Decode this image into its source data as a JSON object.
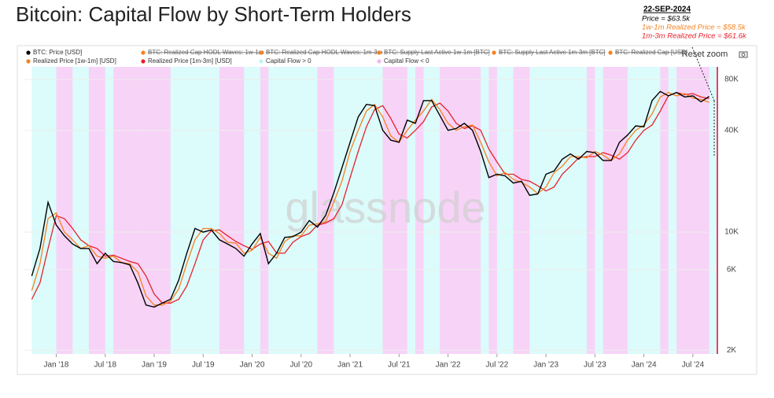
{
  "chart_data": {
    "type": "line",
    "title": "Bitcoin: Capital Flow by Short-Term Holders",
    "log_scale": true,
    "watermark": "glassnode",
    "reset_button": "Reset zoom",
    "annotation": {
      "date": "22-SEP-2024",
      "lines": [
        "Price = $63.5k",
        "1w-1m Realized Price = $58.5k",
        "1m-3m Realized Price = $61.6k"
      ],
      "colors": [
        "#000000",
        "#f5821f",
        "#e8202a"
      ]
    },
    "x": [
      "2017-10",
      "2017-11",
      "2017-12",
      "2018-01",
      "2018-02",
      "2018-03",
      "2018-04",
      "2018-05",
      "2018-06",
      "2018-07",
      "2018-08",
      "2018-09",
      "2018-10",
      "2018-11",
      "2018-12",
      "2019-01",
      "2019-02",
      "2019-03",
      "2019-04",
      "2019-05",
      "2019-06",
      "2019-07",
      "2019-08",
      "2019-09",
      "2019-10",
      "2019-11",
      "2019-12",
      "2020-01",
      "2020-02",
      "2020-03",
      "2020-04",
      "2020-05",
      "2020-06",
      "2020-07",
      "2020-08",
      "2020-09",
      "2020-10",
      "2020-11",
      "2020-12",
      "2021-01",
      "2021-02",
      "2021-03",
      "2021-04",
      "2021-05",
      "2021-06",
      "2021-07",
      "2021-08",
      "2021-09",
      "2021-10",
      "2021-11",
      "2021-12",
      "2022-01",
      "2022-02",
      "2022-03",
      "2022-04",
      "2022-05",
      "2022-06",
      "2022-07",
      "2022-08",
      "2022-09",
      "2022-10",
      "2022-11",
      "2022-12",
      "2023-01",
      "2023-02",
      "2023-03",
      "2023-04",
      "2023-05",
      "2023-06",
      "2023-07",
      "2023-08",
      "2023-09",
      "2023-10",
      "2023-11",
      "2023-12",
      "2024-01",
      "2024-02",
      "2024-03",
      "2024-04",
      "2024-05",
      "2024-06",
      "2024-07",
      "2024-08",
      "2024-09"
    ],
    "xlim": [
      "2017-09",
      "2024-10"
    ],
    "xticks": [
      {
        "value": "2018-01",
        "label": "Jan '18"
      },
      {
        "value": "2018-07",
        "label": "Jul '18"
      },
      {
        "value": "2019-01",
        "label": "Jan '19"
      },
      {
        "value": "2019-07",
        "label": "Jul '19"
      },
      {
        "value": "2020-01",
        "label": "Jan '20"
      },
      {
        "value": "2020-07",
        "label": "Jul '20"
      },
      {
        "value": "2021-01",
        "label": "Jan '21"
      },
      {
        "value": "2021-07",
        "label": "Jul '21"
      },
      {
        "value": "2022-01",
        "label": "Jan '22"
      },
      {
        "value": "2022-07",
        "label": "Jul '22"
      },
      {
        "value": "2023-01",
        "label": "Jan '23"
      },
      {
        "value": "2023-07",
        "label": "Jul '23"
      },
      {
        "value": "2024-01",
        "label": "Jan '24"
      },
      {
        "value": "2024-07",
        "label": "Jul '24"
      }
    ],
    "ylim": [
      1900,
      95000
    ],
    "yticks": [
      {
        "value": 2000,
        "label": "2K"
      },
      {
        "value": 6000,
        "label": "6K"
      },
      {
        "value": 10000,
        "label": "10K"
      },
      {
        "value": 40000,
        "label": "40K"
      },
      {
        "value": 80000,
        "label": "80K"
      }
    ],
    "series": [
      {
        "name": "BTC: Price [USD]",
        "color": "#000000",
        "values": [
          5500,
          8000,
          15000,
          11000,
          9500,
          8500,
          8000,
          8000,
          6500,
          7500,
          6700,
          6600,
          6400,
          5000,
          3700,
          3600,
          3800,
          4000,
          5200,
          7500,
          10500,
          10000,
          10300,
          9000,
          8500,
          8000,
          7200,
          8500,
          9800,
          6500,
          7500,
          9300,
          9400,
          10000,
          11700,
          10700,
          12500,
          17000,
          24000,
          34000,
          48000,
          57000,
          56000,
          40000,
          35000,
          34000,
          46000,
          44000,
          60000,
          60000,
          49000,
          40000,
          41000,
          44000,
          40000,
          30000,
          21000,
          22000,
          21500,
          19500,
          20000,
          16500,
          16800,
          22000,
          23000,
          27000,
          29000,
          27000,
          30000,
          29500,
          26500,
          26500,
          34000,
          37500,
          42500,
          42000,
          60000,
          68000,
          64000,
          67000,
          63000,
          64000,
          59000,
          63500
        ]
      },
      {
        "name": "Realized Price [1w-1m] [USD]",
        "color": "#f5821f",
        "values": [
          4500,
          6500,
          12000,
          13000,
          10000,
          9000,
          8000,
          8300,
          7200,
          7000,
          7200,
          6600,
          6500,
          5800,
          4200,
          3700,
          3700,
          3900,
          4600,
          6500,
          9000,
          10500,
          10500,
          9800,
          8700,
          8600,
          7500,
          7800,
          9300,
          7500,
          7000,
          8800,
          9500,
          9500,
          11000,
          11200,
          11500,
          15000,
          20000,
          30000,
          40000,
          52000,
          57000,
          48000,
          37000,
          34000,
          40000,
          46000,
          52000,
          61000,
          53000,
          44000,
          40000,
          42000,
          43000,
          34000,
          26000,
          21500,
          22500,
          20500,
          19700,
          18500,
          16900,
          18500,
          22500,
          24500,
          28000,
          28000,
          27500,
          30000,
          28500,
          26500,
          29000,
          35000,
          40000,
          43000,
          50000,
          63000,
          67000,
          64000,
          66000,
          62000,
          61000,
          58500
        ]
      },
      {
        "name": "Realized Price [1m-3m] [USD]",
        "color": "#e8202a",
        "values": [
          4000,
          5000,
          8000,
          12500,
          12000,
          10500,
          9000,
          8300,
          8000,
          7200,
          7300,
          7000,
          6700,
          6500,
          5500,
          4300,
          3800,
          3800,
          4000,
          4800,
          6500,
          9000,
          10200,
          10300,
          9500,
          8800,
          8300,
          7900,
          8500,
          8800,
          7500,
          7500,
          8700,
          9400,
          9800,
          11000,
          11300,
          12000,
          14500,
          21000,
          30000,
          42000,
          53000,
          56000,
          47000,
          38000,
          36000,
          40000,
          45000,
          55000,
          58000,
          52000,
          44000,
          41000,
          42500,
          40000,
          31000,
          26000,
          22000,
          22000,
          20500,
          20000,
          18800,
          17500,
          18500,
          22000,
          24500,
          27500,
          28000,
          28000,
          29500,
          28500,
          27000,
          29500,
          35000,
          40000,
          43000,
          52000,
          64000,
          67000,
          65000,
          66000,
          63000,
          61600
        ]
      }
    ],
    "hidden_series": [
      {
        "name": "BTC: Realized Cap HODL Waves: 1w-1m",
        "color": "#f5821f"
      },
      {
        "name": "BTC: Realized Cap HODL Waves: 1m-3m",
        "color": "#f5821f"
      },
      {
        "name": "BTC: Supply Last Active 1w-1m [BTC]",
        "color": "#f5821f"
      },
      {
        "name": "BTC: Supply Last Active 1m-3m [BTC]",
        "color": "#f5821f"
      },
      {
        "name": "BTC: Realized Cap [USD]",
        "color": "#f5821f"
      }
    ],
    "bands": [
      {
        "name": "Capital Flow > 0",
        "color": "#dcfbfb",
        "periods": [
          [
            "2017-10",
            "2024-09"
          ]
        ]
      },
      {
        "name": "Capital Flow < 0",
        "color": "#f7d3f7",
        "periods": [
          [
            "2018-01",
            "2018-02"
          ],
          [
            "2018-05",
            "2018-06"
          ],
          [
            "2018-08",
            "2018-10"
          ],
          [
            "2018-11",
            "2019-02"
          ],
          [
            "2019-09",
            "2019-11"
          ],
          [
            "2020-02",
            "2020-02"
          ],
          [
            "2020-09",
            "2020-10"
          ],
          [
            "2021-05",
            "2021-07"
          ],
          [
            "2021-09",
            "2021-09"
          ],
          [
            "2021-12",
            "2022-04"
          ],
          [
            "2022-06",
            "2022-06"
          ],
          [
            "2022-09",
            "2022-10"
          ],
          [
            "2023-06",
            "2023-06"
          ],
          [
            "2023-08",
            "2023-10"
          ],
          [
            "2024-03",
            "2024-03"
          ],
          [
            "2024-05",
            "2024-08"
          ]
        ]
      }
    ]
  }
}
